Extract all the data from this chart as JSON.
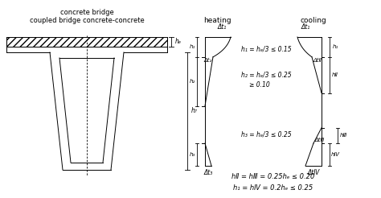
{
  "title_left1": "concrete bridge",
  "title_left2": "coupled bridge concrete-concrete",
  "label_he": "hₑ",
  "label_hb": "h₇",
  "heating_title": "heating",
  "cooling_title": "cooling",
  "dt1_label": "Δt₁",
  "dt2_label": "Δt₂",
  "dt3_label": "Δt₃",
  "dtI_label": "Δt₁",
  "dtII_label": "ΔtⅡ",
  "dtIII_label": "ΔtⅢ",
  "dtIV_label": "ΔtⅣ",
  "h1_label": "h₁",
  "h2_label": "h₂",
  "h3_label": "h₃",
  "hI_label": "h₁",
  "hII_label": "hⅡ",
  "hIII_label": "hⅢ",
  "hIV_label": "hⅣ",
  "eq1": "h₁ = hₑ/3 ≤ 0.15",
  "eq2": "h₂ = hₑ/3 ≤ 0.25",
  "eq2b": "≥ 0.10",
  "eq3": "h₃ = hₑ/3 ≤ 0.25",
  "eq4": "hⅡ = hⅢ = 0.25hₑ ≤ 0.20",
  "eq5": "h₁ = hⅣ = 0.2hₑ ≤ 0.25",
  "bg_color": "#ffffff",
  "line_color": "#000000"
}
